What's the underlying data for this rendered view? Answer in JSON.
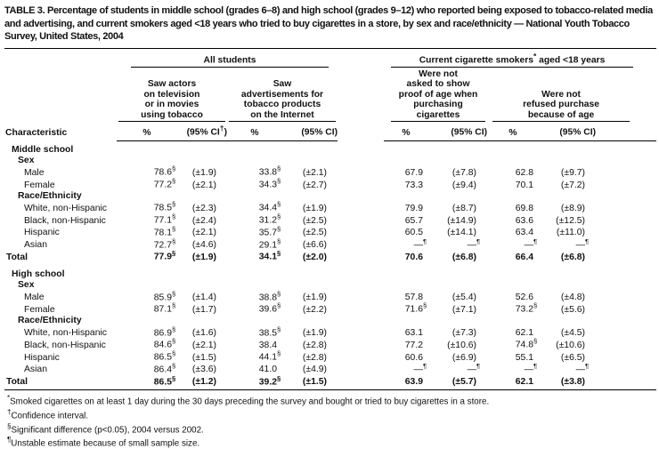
{
  "title": "TABLE 3. Percentage of students in middle school (grades 6–8) and high school (grades 9–12) who reported being exposed to tobacco-related media and advertising, and current smokers aged <18 years who tried to buy cigarettes in a store, by sex and race/ethnicity — National Youth Tobacco Survey, United States, 2004",
  "table": {
    "header": {
      "characteristic": "Characteristic",
      "spanners": [
        {
          "pre": "All students",
          "sup": "",
          "post": ""
        },
        {
          "pre": "Current cigarette smokers",
          "sup": "*",
          "post": " aged <18 years"
        }
      ],
      "groups": [
        {
          "label": "Saw actors\non television\nor in movies\nusing tobacco",
          "pct": "%",
          "ci_pre": "(95% CI",
          "ci_sup": "†",
          "ci_post": ")"
        },
        {
          "label": "Saw\nadvertisements for\ntobacco products\non the Internet",
          "pct": "%",
          "ci_pre": "(95% CI)",
          "ci_sup": "",
          "ci_post": ""
        },
        {
          "label": "Were not\nasked to show\nproof of age when\npurchasing cigarettes",
          "pct": "%",
          "ci_pre": "(95% CI)",
          "ci_sup": "",
          "ci_post": ""
        },
        {
          "label": "Were not\nrefused purchase\nbecause of age",
          "pct": "%",
          "ci_pre": "(95% CI)",
          "ci_sup": "",
          "ci_post": ""
        }
      ]
    },
    "rows": [
      {
        "type": "section",
        "label": "Middle school",
        "cells": []
      },
      {
        "type": "subsection",
        "label": "Sex",
        "cells": []
      },
      {
        "type": "data",
        "label": "Male",
        "cells": [
          [
            "78.6",
            "§"
          ],
          [
            "(±1.9)",
            ""
          ],
          [
            "33.8",
            "§"
          ],
          [
            "(±2.1)",
            ""
          ],
          [
            "67.9",
            ""
          ],
          [
            "(±7.8)",
            ""
          ],
          [
            "62.8",
            ""
          ],
          [
            "(±9.7)",
            ""
          ]
        ]
      },
      {
        "type": "data",
        "label": "Female",
        "cells": [
          [
            "77.2",
            "§"
          ],
          [
            "(±2.1)",
            ""
          ],
          [
            "34.3",
            "§"
          ],
          [
            "(±2.7)",
            ""
          ],
          [
            "73.3",
            ""
          ],
          [
            "(±9.4)",
            ""
          ],
          [
            "70.1",
            ""
          ],
          [
            "(±7.2)",
            ""
          ]
        ]
      },
      {
        "type": "subsection",
        "label": "Race/Ethnicity",
        "cells": []
      },
      {
        "type": "data",
        "label": "White, non-Hispanic",
        "cells": [
          [
            "78.5",
            "§"
          ],
          [
            "(±2.3)",
            ""
          ],
          [
            "34.4",
            "§"
          ],
          [
            "(±1.9)",
            ""
          ],
          [
            "79.9",
            ""
          ],
          [
            "(±8.7)",
            ""
          ],
          [
            "69.8",
            ""
          ],
          [
            "(±8.9)",
            ""
          ]
        ]
      },
      {
        "type": "data",
        "label": "Black, non-Hispanic",
        "cells": [
          [
            "77.1",
            "§"
          ],
          [
            "(±2.4)",
            ""
          ],
          [
            "31.2",
            "§"
          ],
          [
            "(±2.5)",
            ""
          ],
          [
            "65.7",
            ""
          ],
          [
            "(±14.9)",
            ""
          ],
          [
            "63.6",
            ""
          ],
          [
            "(±12.5)",
            ""
          ]
        ]
      },
      {
        "type": "data",
        "label": "Hispanic",
        "cells": [
          [
            "78.1",
            "§"
          ],
          [
            "(±2.1)",
            ""
          ],
          [
            "35.7",
            "§"
          ],
          [
            "(±2.5)",
            ""
          ],
          [
            "60.5",
            ""
          ],
          [
            "(±14.1)",
            ""
          ],
          [
            "63.4",
            ""
          ],
          [
            "(±11.0)",
            ""
          ]
        ]
      },
      {
        "type": "data",
        "label": "Asian",
        "cells": [
          [
            "72.7",
            "§"
          ],
          [
            "(±4.6)",
            ""
          ],
          [
            "29.1",
            "§"
          ],
          [
            "(±6.6)",
            ""
          ],
          [
            "—",
            "¶"
          ],
          [
            "—",
            "¶"
          ],
          [
            "—",
            "¶"
          ],
          [
            "—",
            "¶"
          ]
        ]
      },
      {
        "type": "total",
        "label": "Total",
        "cells": [
          [
            "77.9",
            "§"
          ],
          [
            "(±1.9)",
            ""
          ],
          [
            "34.1",
            "§"
          ],
          [
            "(±2.0)",
            ""
          ],
          [
            "70.6",
            ""
          ],
          [
            "(±6.8)",
            ""
          ],
          [
            "66.4",
            ""
          ],
          [
            "(±6.8)",
            ""
          ]
        ]
      },
      {
        "type": "section",
        "gap": true,
        "label": "High school",
        "cells": []
      },
      {
        "type": "subsection",
        "label": "Sex",
        "cells": []
      },
      {
        "type": "data",
        "label": "Male",
        "cells": [
          [
            "85.9",
            "§"
          ],
          [
            "(±1.4)",
            ""
          ],
          [
            "38.8",
            "§"
          ],
          [
            "(±1.9)",
            ""
          ],
          [
            "57.8",
            ""
          ],
          [
            "(±5.4)",
            ""
          ],
          [
            "52.6",
            ""
          ],
          [
            "(±4.8)",
            ""
          ]
        ]
      },
      {
        "type": "data",
        "label": "Female",
        "cells": [
          [
            "87.1",
            "§"
          ],
          [
            "(±1.7)",
            ""
          ],
          [
            "39.6",
            "§"
          ],
          [
            "(±2.2)",
            ""
          ],
          [
            "71.6",
            "§"
          ],
          [
            "(±7.1)",
            ""
          ],
          [
            "73.2",
            "§"
          ],
          [
            "(±5.6)",
            ""
          ]
        ]
      },
      {
        "type": "subsection",
        "label": "Race/Ethnicity",
        "cells": []
      },
      {
        "type": "data",
        "label": "White, non-Hispanic",
        "cells": [
          [
            "86.9",
            "§"
          ],
          [
            "(±1.6)",
            ""
          ],
          [
            "38.5",
            "§"
          ],
          [
            "(±1.9)",
            ""
          ],
          [
            "63.1",
            ""
          ],
          [
            "(±7.3)",
            ""
          ],
          [
            "62.1",
            ""
          ],
          [
            "(±4.5)",
            ""
          ]
        ]
      },
      {
        "type": "data",
        "label": "Black, non-Hispanic",
        "cells": [
          [
            "84.6",
            "§"
          ],
          [
            "(±2.1)",
            ""
          ],
          [
            "38.4",
            ""
          ],
          [
            "(±2.8)",
            ""
          ],
          [
            "77.2",
            ""
          ],
          [
            "(±10.6)",
            ""
          ],
          [
            "74.8",
            "§"
          ],
          [
            "(±10.6)",
            ""
          ]
        ]
      },
      {
        "type": "data",
        "label": "Hispanic",
        "cells": [
          [
            "86.5",
            "§"
          ],
          [
            "(±1.5)",
            ""
          ],
          [
            "44.1",
            "§"
          ],
          [
            "(±2.8)",
            ""
          ],
          [
            "60.6",
            ""
          ],
          [
            "(±6.9)",
            ""
          ],
          [
            "55.1",
            ""
          ],
          [
            "(±6.5)",
            ""
          ]
        ]
      },
      {
        "type": "data",
        "label": "Asian",
        "cells": [
          [
            "86.4",
            "§"
          ],
          [
            "(±3.6)",
            ""
          ],
          [
            "41.0",
            ""
          ],
          [
            "(±4.9)",
            ""
          ],
          [
            "—",
            "¶"
          ],
          [
            "—",
            "¶"
          ],
          [
            "—",
            "¶"
          ],
          [
            "—",
            "¶"
          ]
        ]
      },
      {
        "type": "total",
        "label": "Total",
        "cells": [
          [
            "86.5",
            "§"
          ],
          [
            "(±1.2)",
            ""
          ],
          [
            "39.2",
            "§"
          ],
          [
            "(±1.5)",
            ""
          ],
          [
            "63.9",
            ""
          ],
          [
            "(±5.7)",
            ""
          ],
          [
            "62.1",
            ""
          ],
          [
            "(±3.8)",
            ""
          ]
        ]
      }
    ]
  },
  "footnotes": [
    {
      "marker": "*",
      "text": "Smoked cigarettes on at least 1 day during the 30 days preceding the survey and bought or tried to buy cigarettes in a store."
    },
    {
      "marker": "†",
      "text": "Confidence interval."
    },
    {
      "marker": "§",
      "text": "Significant difference (p<0.05), 2004 versus 2002."
    },
    {
      "marker": "¶",
      "text": "Unstable estimate because of small sample size."
    }
  ]
}
